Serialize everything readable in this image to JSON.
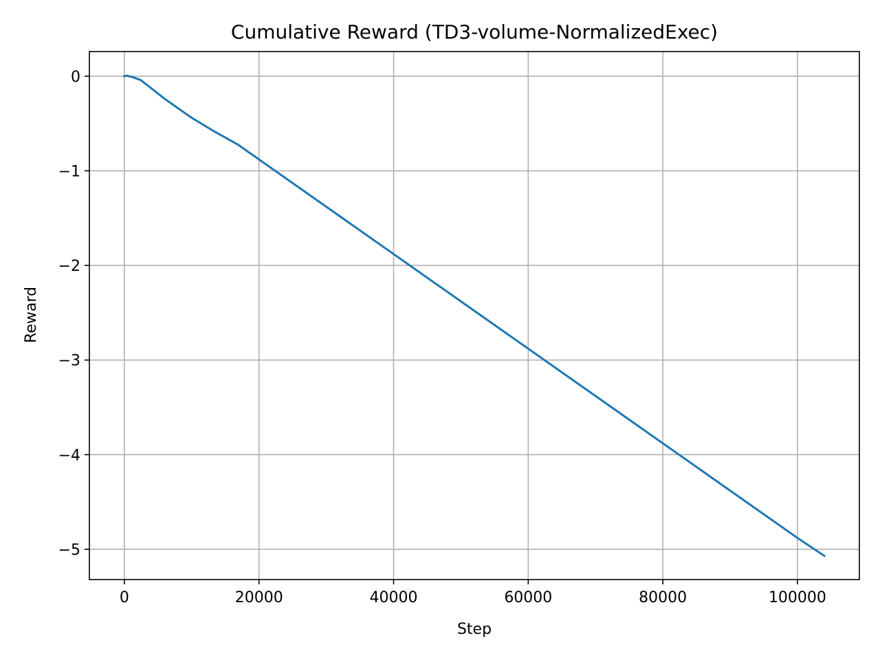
{
  "chart_data": {
    "type": "line",
    "title": "Cumulative Reward (TD3-volume-NormalizedExec)",
    "xlabel": "Step",
    "ylabel": "Reward",
    "xlim": [
      -5200,
      109200
    ],
    "ylim": [
      -5.32,
      0.26
    ],
    "xticks": [
      0,
      20000,
      40000,
      60000,
      80000,
      100000
    ],
    "xtick_labels": [
      "0",
      "20000",
      "40000",
      "60000",
      "80000",
      "100000"
    ],
    "yticks": [
      0,
      -1,
      -2,
      -3,
      -4,
      -5
    ],
    "ytick_labels": [
      "0",
      "−1",
      "−2",
      "−3",
      "−4",
      "−5"
    ],
    "grid": true,
    "legend": "none",
    "series": [
      {
        "color": "#1f77b4",
        "x": [
          0,
          300,
          1000,
          2400,
          3500,
          6000,
          10000,
          13500,
          16800,
          20000,
          30000,
          40000,
          50000,
          60000,
          70000,
          80000,
          90000,
          100000,
          104000
        ],
        "y": [
          0.0,
          0.005,
          -0.005,
          -0.04,
          -0.1,
          -0.24,
          -0.44,
          -0.59,
          -0.72,
          -0.88,
          -1.38,
          -1.88,
          -2.38,
          -2.88,
          -3.38,
          -3.88,
          -4.38,
          -4.88,
          -5.07
        ]
      }
    ]
  }
}
